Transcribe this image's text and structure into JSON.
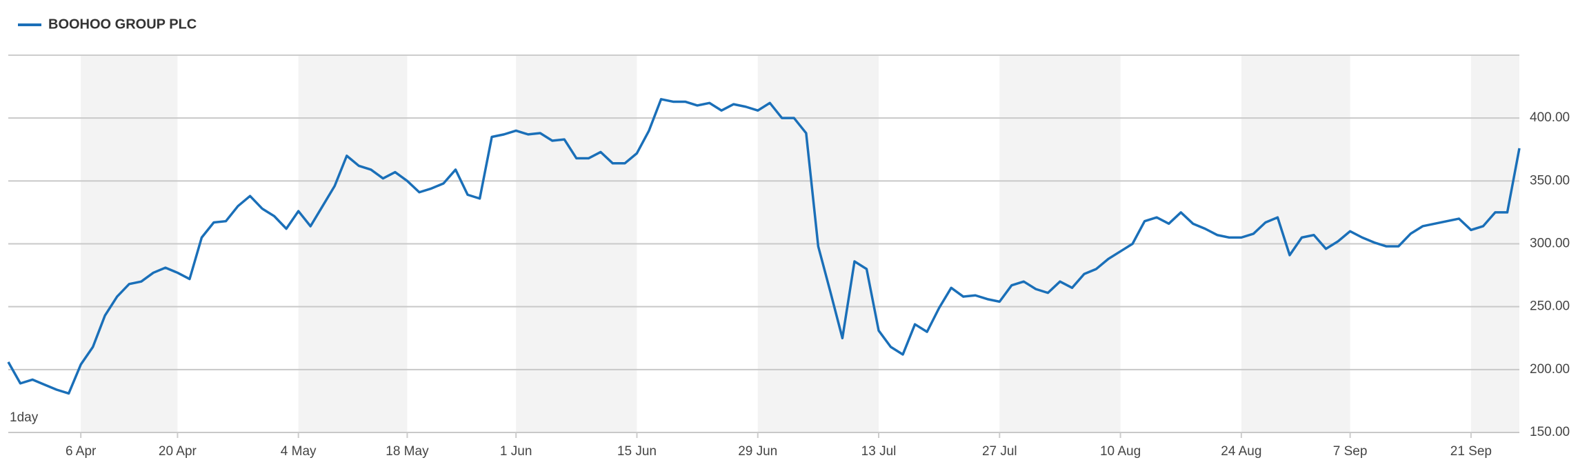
{
  "chart_data": {
    "type": "line",
    "interval_label": "1day",
    "categories": [
      null,
      null,
      null,
      null,
      null,
      null,
      "6 Apr",
      null,
      null,
      null,
      null,
      null,
      null,
      null,
      "20 Apr",
      null,
      null,
      null,
      null,
      null,
      null,
      null,
      null,
      null,
      "4 May",
      null,
      null,
      null,
      null,
      null,
      null,
      null,
      null,
      "18 May",
      null,
      null,
      null,
      null,
      null,
      null,
      null,
      null,
      "1 Jun",
      null,
      null,
      null,
      null,
      null,
      null,
      null,
      null,
      null,
      "15 Jun",
      null,
      null,
      null,
      null,
      null,
      null,
      null,
      null,
      null,
      "29 Jun",
      null,
      null,
      null,
      null,
      null,
      null,
      null,
      null,
      null,
      "13 Jul",
      null,
      null,
      null,
      null,
      null,
      null,
      null,
      null,
      null,
      "27 Jul",
      null,
      null,
      null,
      null,
      null,
      null,
      null,
      null,
      null,
      "10 Aug",
      null,
      null,
      null,
      null,
      null,
      null,
      null,
      null,
      null,
      "24 Aug",
      null,
      null,
      null,
      null,
      null,
      null,
      null,
      null,
      "7 Sep",
      null,
      null,
      null,
      null,
      null,
      null,
      null,
      null,
      null,
      "21 Sep",
      null,
      null,
      null,
      null
    ],
    "series": [
      {
        "name": "BOOHOO GROUP PLC",
        "color": "#1a6fb8",
        "values": [
          206,
          189,
          192,
          188,
          184,
          181,
          204,
          218,
          243,
          258,
          268,
          270,
          277,
          281,
          277,
          272,
          305,
          317,
          318,
          330,
          338,
          328,
          322,
          312,
          326,
          314,
          330,
          346,
          370,
          362,
          359,
          352,
          357,
          350,
          341,
          344,
          348,
          359,
          339,
          336,
          385,
          387,
          390,
          387,
          388,
          382,
          383,
          368,
          368,
          373,
          364,
          364,
          372,
          390,
          415,
          413,
          413,
          410,
          412,
          406,
          411,
          409,
          406,
          412,
          400,
          400,
          388,
          298,
          262,
          225,
          286,
          280,
          231,
          218,
          212,
          236,
          230,
          249,
          265,
          258,
          259,
          256,
          254,
          267,
          270,
          264,
          261,
          270,
          265,
          276,
          280,
          288,
          294,
          300,
          318,
          321,
          316,
          325,
          316,
          312,
          307,
          305,
          305,
          308,
          317,
          321,
          291,
          305,
          307,
          296,
          302,
          310,
          305,
          301,
          298,
          298,
          308,
          314,
          316,
          318,
          320,
          311,
          314,
          325,
          325,
          376
        ]
      }
    ],
    "ylim": [
      150,
      450
    ],
    "yticks": [
      {
        "value": 150,
        "label": "150.00"
      },
      {
        "value": 200,
        "label": "200.00"
      },
      {
        "value": 250,
        "label": "250.00"
      },
      {
        "value": 300,
        "label": "300.00"
      },
      {
        "value": 350,
        "label": "350.00"
      },
      {
        "value": 400,
        "label": "400.00"
      }
    ],
    "grid": true
  }
}
